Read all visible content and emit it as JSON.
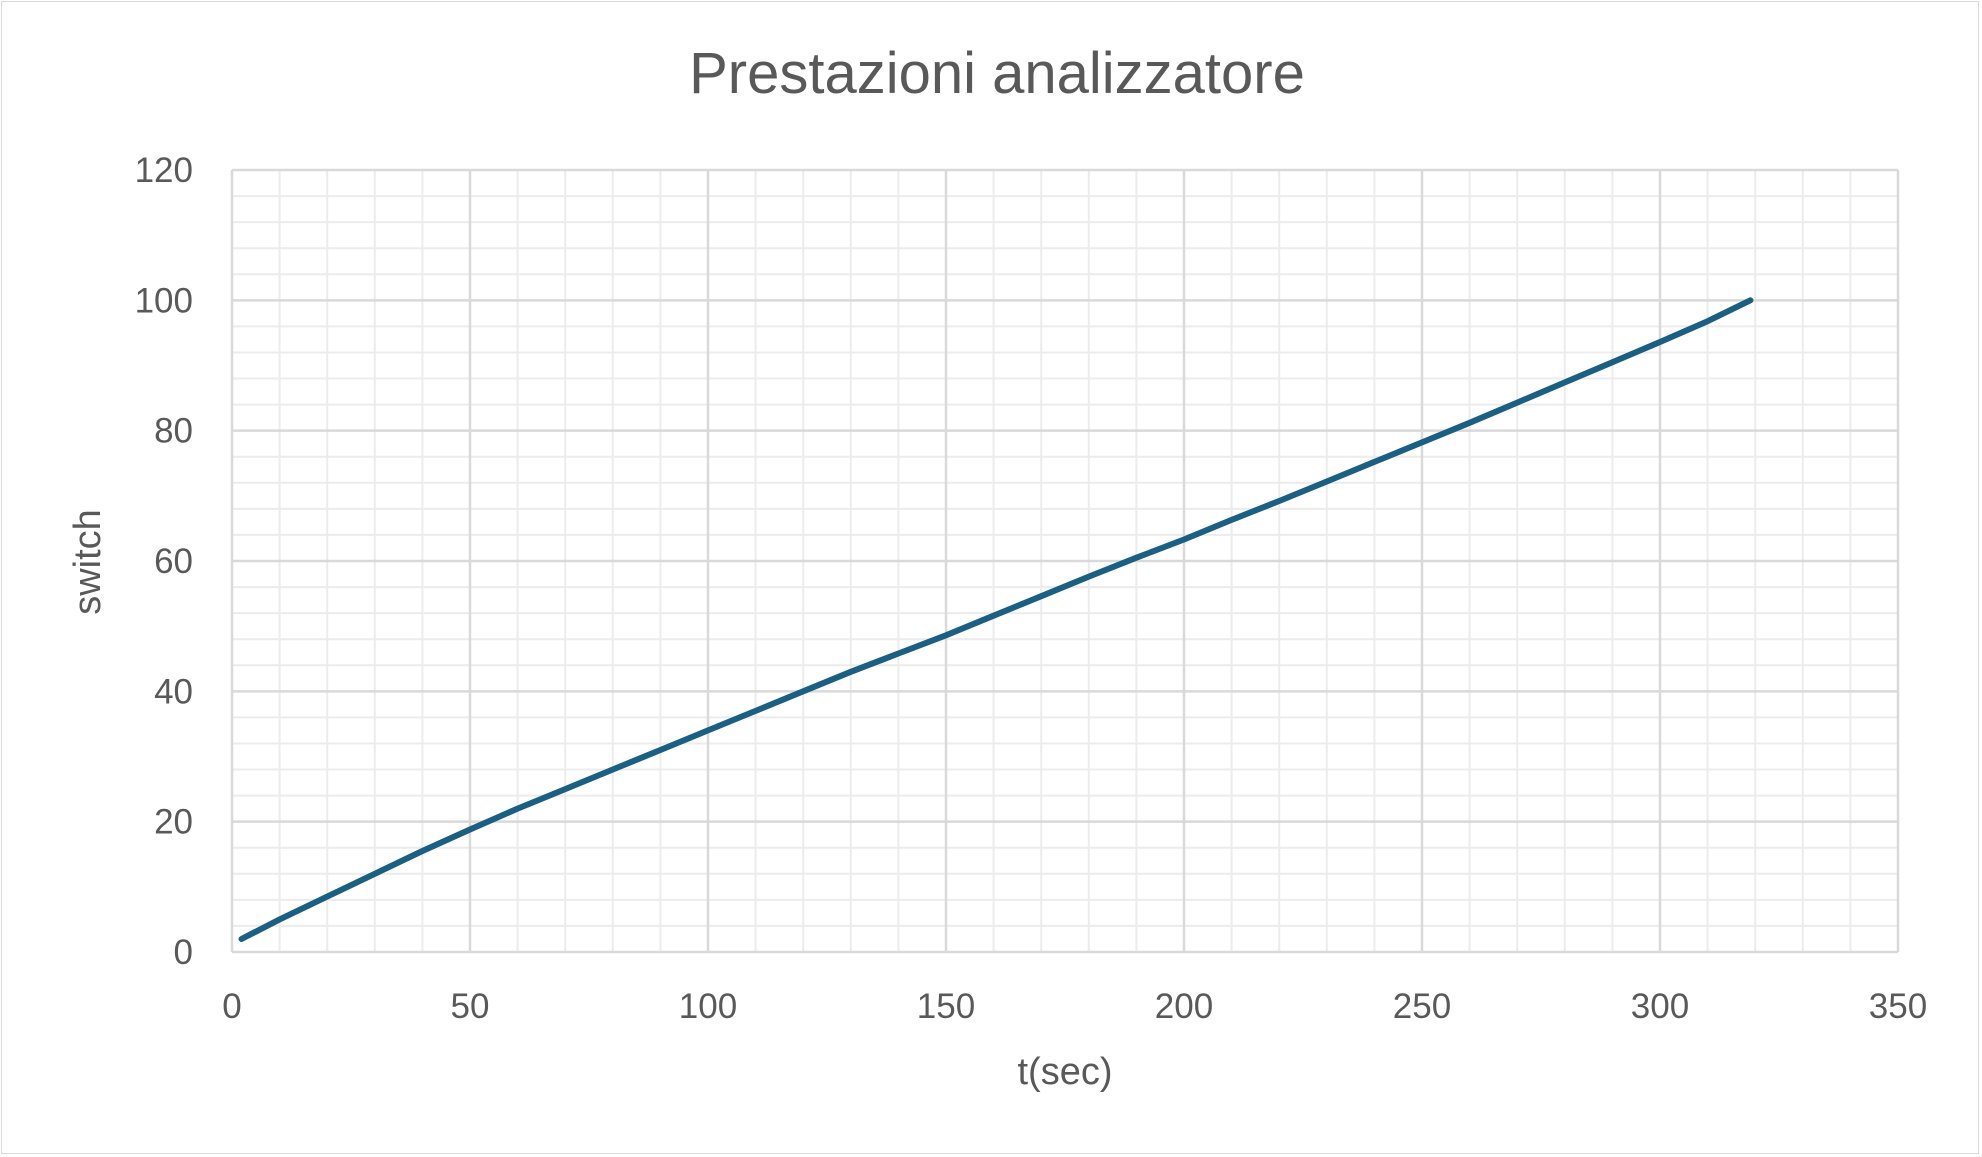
{
  "chart_data": {
    "type": "line",
    "title": "Prestazioni analizzatore",
    "xlabel": "t(sec)",
    "ylabel": "switch",
    "xlim": [
      0,
      350
    ],
    "ylim": [
      0,
      120
    ],
    "x_ticks": [
      "0",
      "50",
      "100",
      "150",
      "200",
      "250",
      "300",
      "350"
    ],
    "y_ticks": [
      "0",
      "20",
      "40",
      "60",
      "80",
      "100",
      "120"
    ],
    "grid": true,
    "minor_grid": true,
    "legend": "none",
    "series": [
      {
        "color": "#1b6083",
        "x": [
          2,
          10,
          20,
          30,
          40,
          50,
          60,
          70,
          80,
          90,
          100,
          110,
          120,
          130,
          140,
          150,
          160,
          170,
          180,
          190,
          200,
          210,
          220,
          230,
          240,
          250,
          260,
          270,
          280,
          290,
          300,
          310,
          319
        ],
        "y": [
          2,
          5,
          8.5,
          12,
          15.5,
          18.8,
          22,
          25,
          28,
          31,
          34,
          37,
          40,
          43,
          45.8,
          48.6,
          51.6,
          54.6,
          57.6,
          60.5,
          63.3,
          66.3,
          69.2,
          72.2,
          75.2,
          78.2,
          81.2,
          84.3,
          87.4,
          90.5,
          93.6,
          96.8,
          100
        ]
      }
    ]
  }
}
